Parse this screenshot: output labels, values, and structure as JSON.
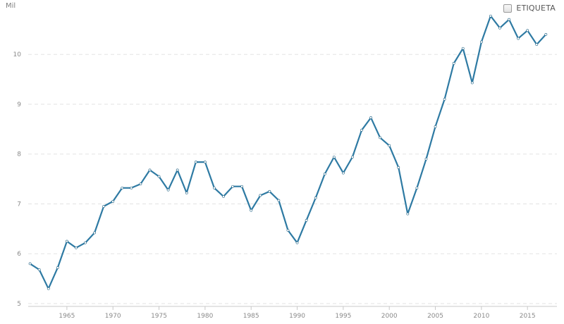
{
  "chart_data": {
    "type": "line",
    "unit_label": "Mil",
    "legend_label": "ETIQUETA",
    "legend_checked": false,
    "color": "#2e7aa3",
    "grid": "horizontal dashed",
    "ylim": [
      5,
      10.95
    ],
    "xlim": [
      1960.8,
      2018.2
    ],
    "yticks": [
      5,
      6,
      7,
      8,
      9,
      10
    ],
    "xticks": [
      1965,
      1970,
      1975,
      1980,
      1985,
      1990,
      1995,
      2000,
      2005,
      2010,
      2015
    ],
    "x": [
      1961,
      1962,
      1963,
      1964,
      1965,
      1966,
      1967,
      1968,
      1969,
      1970,
      1971,
      1972,
      1973,
      1974,
      1975,
      1976,
      1977,
      1978,
      1979,
      1980,
      1981,
      1982,
      1983,
      1984,
      1985,
      1986,
      1987,
      1988,
      1989,
      1990,
      1991,
      1992,
      1993,
      1994,
      1995,
      1996,
      1997,
      1998,
      1999,
      2000,
      2001,
      2002,
      2003,
      2004,
      2005,
      2006,
      2007,
      2008,
      2009,
      2010,
      2011,
      2012,
      2013,
      2014,
      2015,
      2016,
      2017
    ],
    "values": [
      5.8,
      5.68,
      5.3,
      5.72,
      6.25,
      6.12,
      6.22,
      6.42,
      6.95,
      7.05,
      7.32,
      7.32,
      7.4,
      7.68,
      7.55,
      7.28,
      7.68,
      7.22,
      7.84,
      7.84,
      7.32,
      7.15,
      7.35,
      7.35,
      6.87,
      7.17,
      7.25,
      7.07,
      6.47,
      6.22,
      6.67,
      7.12,
      7.6,
      7.94,
      7.62,
      7.94,
      8.48,
      8.73,
      8.33,
      8.17,
      7.73,
      6.8,
      7.32,
      7.9,
      8.55,
      9.1,
      9.82,
      10.12,
      9.43,
      10.25,
      10.77,
      10.53,
      10.7,
      10.32,
      10.48,
      10.2,
      10.4
    ]
  }
}
